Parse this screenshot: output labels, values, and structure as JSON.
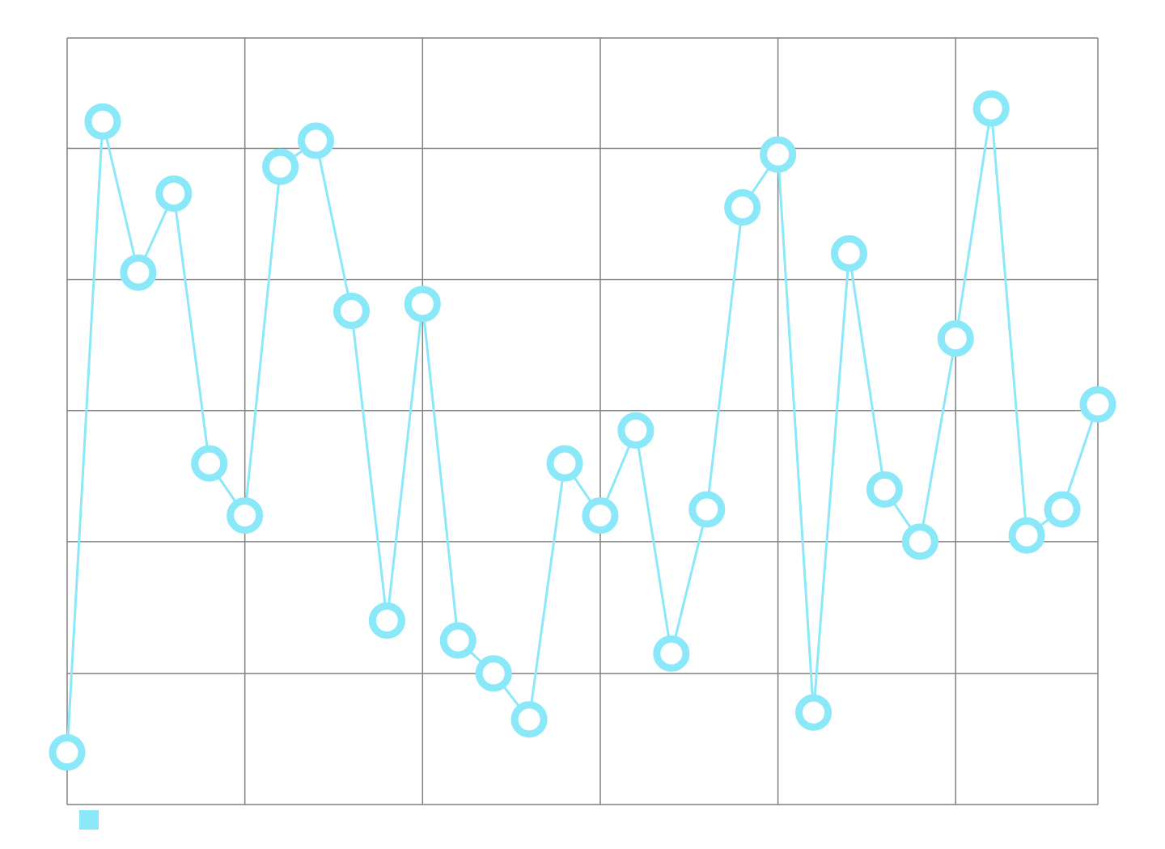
{
  "chart_data": {
    "type": "line",
    "title": "",
    "xlabel": "",
    "ylabel": "",
    "x": [
      0,
      1,
      2,
      3,
      4,
      5,
      6,
      7,
      8,
      9,
      10,
      11,
      12,
      13,
      14,
      15,
      16,
      17,
      18,
      19,
      20,
      21,
      22,
      23,
      24,
      25,
      26,
      27,
      28,
      29
    ],
    "xlim": [
      0,
      29
    ],
    "ylim": [
      0,
      1
    ],
    "series": [
      {
        "name": "",
        "color": "#8ae8f8",
        "values": [
          0.068,
          0.891,
          0.694,
          0.797,
          0.445,
          0.377,
          0.832,
          0.866,
          0.644,
          0.24,
          0.653,
          0.214,
          0.171,
          0.111,
          0.445,
          0.377,
          0.488,
          0.197,
          0.385,
          0.779,
          0.848,
          0.12,
          0.719,
          0.411,
          0.343,
          0.608,
          0.908,
          0.351,
          0.385,
          0.522
        ]
      }
    ],
    "grid": true,
    "x_gridlines": [
      0,
      5,
      10,
      15,
      20,
      25,
      29
    ],
    "y_gridlines": [
      0,
      0.171,
      0.343,
      0.514,
      0.685,
      0.856,
      1.0
    ],
    "show_tick_labels": false,
    "legend": {
      "placement": "bottom-left"
    }
  }
}
